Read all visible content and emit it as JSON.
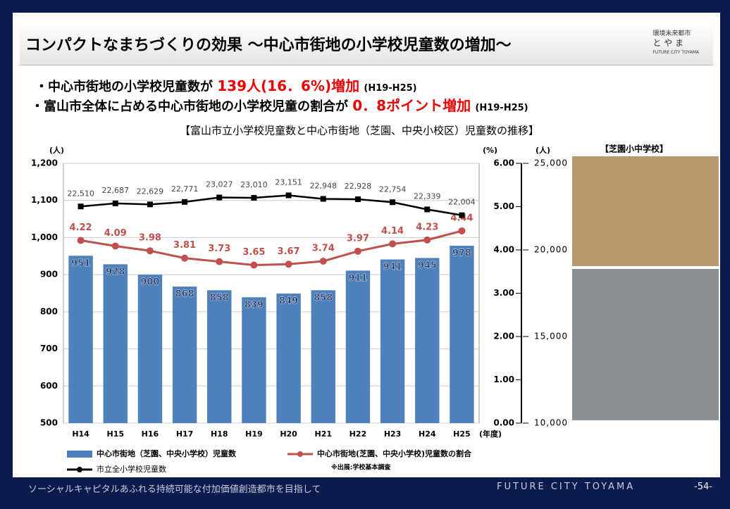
{
  "slide": {
    "title": "コンパクトなまちづくりの効果 ～中心市街地の小学校児童数の増加～",
    "logo": [
      "環境未来都市",
      "と や ま",
      "FUTURE CITY TOYAMA"
    ],
    "bullets": [
      [
        "・中心市街地の小学校児童数が ",
        "139人(16．6%)増加",
        "(H19-H25)"
      ],
      [
        "・富山市全体に占める中心市街地の小学校児童の割合が ",
        "0．8ポイント増加",
        "(H19-H25)"
      ]
    ],
    "photo_caption": "【芝園小中学校】",
    "footer": {
      "left": "ソーシャルキャピタルあふれる持続可能な付加価値創造都市を目指して",
      "center": "FUTURE CITY TOYAMA",
      "page": "-54-"
    }
  },
  "chart_data": {
    "type": "combo",
    "title": "【富山市立小学校児童数と中心市街地（芝園、中央小校区）児童数の推移】",
    "y_label": "(人)",
    "y2_label": "(%)",
    "y3_label": "(人)",
    "x_label": "(年度)",
    "note": "※出展:学校基本調査",
    "categories": [
      "H14",
      "H15",
      "H16",
      "H17",
      "H18",
      "H19",
      "H20",
      "H21",
      "H22",
      "H23",
      "H24",
      "H25"
    ],
    "ylim": [
      500,
      1200
    ],
    "yticks": [
      500,
      600,
      700,
      800,
      900,
      {
        "value": 1000,
        "label": "1,000"
      },
      {
        "value": 1100,
        "label": "1,100"
      },
      {
        "value": 1200,
        "label": "1,200"
      }
    ],
    "y2lim": [
      0,
      6
    ],
    "y2ticks": [
      {
        "value": 0,
        "label": "0.00"
      },
      {
        "value": 1,
        "label": "1.00"
      },
      {
        "value": 2,
        "label": "2.00"
      },
      {
        "value": 3,
        "label": "3.00"
      },
      {
        "value": 4,
        "label": "4.00"
      },
      {
        "value": 5,
        "label": "5.00"
      },
      {
        "value": 6,
        "label": "6.00"
      }
    ],
    "y3lim": [
      10000,
      25000
    ],
    "y3ticks": [
      {
        "value": 10000,
        "label": "10,000"
      },
      {
        "value": 15000,
        "label": "15,000"
      },
      {
        "value": 20000,
        "label": "20,000"
      },
      {
        "value": 25000,
        "label": "25,000"
      }
    ],
    "series": [
      {
        "name": "中心市街地（芝園、中央小学校）児童数",
        "type": "bar",
        "color": "#4f81bd",
        "values": [
          951,
          928,
          900,
          868,
          858,
          839,
          849,
          858,
          911,
          941,
          945,
          978
        ]
      },
      {
        "name": "中心市街地(芝園、中央小学校)児童数の割合",
        "type": "line",
        "axis": "y2",
        "color": "#c0504d",
        "values": [
          4.22,
          4.09,
          3.98,
          3.81,
          3.73,
          3.65,
          3.67,
          3.74,
          3.97,
          4.14,
          4.23,
          4.44
        ]
      },
      {
        "name": "市立全小学校児童数",
        "type": "line",
        "axis": "y3",
        "color": "#000000",
        "values": [
          22510,
          22687,
          22629,
          22771,
          23027,
          23010,
          23151,
          22948,
          22928,
          22754,
          22339,
          22004
        ],
        "value_labels": [
          "22,510",
          "22,687",
          "22,629",
          "22,771",
          "23,027",
          "23,010",
          "23,151",
          "22,948",
          "22,928",
          "22,754",
          "22,339",
          "22,004"
        ]
      }
    ]
  }
}
